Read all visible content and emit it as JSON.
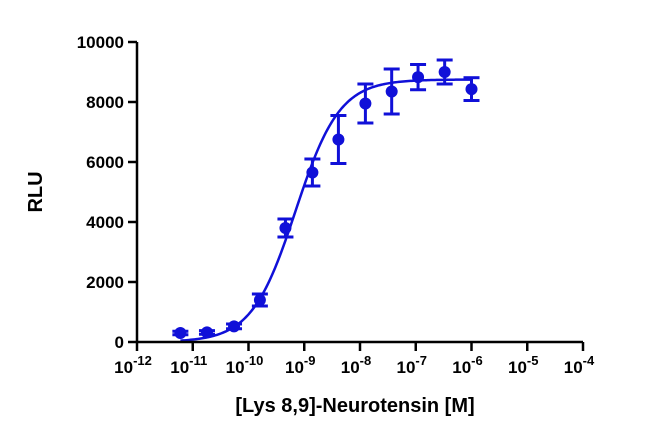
{
  "chart_data": {
    "type": "scatter",
    "xlabel": "[Lys 8,9]-Neurotensin [M]",
    "ylabel": "RLU",
    "xscale": "log",
    "xlim": [
      1e-12,
      0.0001
    ],
    "ylim": [
      0,
      10000
    ],
    "grid": false,
    "legend": "none",
    "color": "#1010d8",
    "x_ticks": [
      {
        "value": 1e-12,
        "base": "10",
        "exp": "-12"
      },
      {
        "value": 1e-11,
        "base": "10",
        "exp": "-11"
      },
      {
        "value": 1e-10,
        "base": "10",
        "exp": "-10"
      },
      {
        "value": 1e-09,
        "base": "10",
        "exp": "-9"
      },
      {
        "value": 1e-08,
        "base": "10",
        "exp": "-8"
      },
      {
        "value": 1e-07,
        "base": "10",
        "exp": "-7"
      },
      {
        "value": 1e-06,
        "base": "10",
        "exp": "-6"
      },
      {
        "value": 1e-05,
        "base": "10",
        "exp": "-5"
      },
      {
        "value": 0.0001,
        "base": "10",
        "exp": "-4"
      }
    ],
    "y_ticks": [
      0,
      2000,
      4000,
      6000,
      8000,
      10000
    ],
    "y_tick_labels": [
      "0",
      "2000",
      "4000",
      "6000",
      "8000",
      "10000"
    ],
    "points": [
      {
        "x": 6e-12,
        "y": 300,
        "err": 60
      },
      {
        "x": 1.8e-11,
        "y": 320,
        "err": 60
      },
      {
        "x": 5.5e-11,
        "y": 520,
        "err": 80
      },
      {
        "x": 1.6e-10,
        "y": 1400,
        "err": 200
      },
      {
        "x": 4.6e-10,
        "y": 3800,
        "err": 300
      },
      {
        "x": 1.4e-09,
        "y": 5650,
        "err": 450
      },
      {
        "x": 4.1e-09,
        "y": 6750,
        "err": 800
      },
      {
        "x": 1.25e-08,
        "y": 7950,
        "err": 650
      },
      {
        "x": 3.7e-08,
        "y": 8350,
        "err": 750
      },
      {
        "x": 1.1e-07,
        "y": 8830,
        "err": 420
      },
      {
        "x": 3.3e-07,
        "y": 9000,
        "err": 400
      },
      {
        "x": 1e-06,
        "y": 8430,
        "err": 380
      }
    ],
    "fit": {
      "bottom": 0,
      "top": 8750,
      "ec50": 7e-10,
      "hill": 1.1,
      "xmin": 6e-12,
      "xmax": 1e-06
    }
  }
}
